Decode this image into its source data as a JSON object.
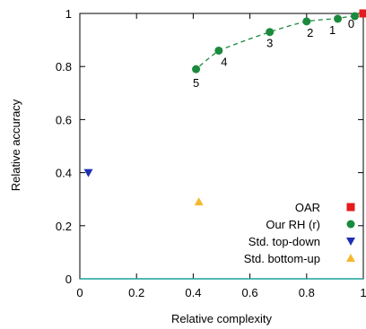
{
  "chart_data": {
    "type": "scatter",
    "xlabel": "Relative complexity",
    "ylabel": "Relative accuracy",
    "xlim": [
      0,
      1
    ],
    "ylim": [
      0,
      1
    ],
    "x_ticks": [
      0,
      0.2,
      0.4,
      0.6,
      0.8,
      1
    ],
    "y_ticks": [
      0,
      0.2,
      0.4,
      0.6,
      0.8,
      1
    ],
    "x_tick_labels": [
      "0",
      "0.2",
      "0.4",
      "0.6",
      "0.8",
      "1"
    ],
    "y_tick_labels": [
      "0",
      "0.2",
      "0.4",
      "0.6",
      "0.8",
      "1"
    ],
    "grid": false,
    "legend_position": "bottom-right",
    "series": [
      {
        "name": "OAR",
        "marker": "square",
        "color": "#e41a1c",
        "points": [
          {
            "x": 1.0,
            "y": 1.0
          }
        ]
      },
      {
        "name": "Our RH (r)",
        "marker": "circle",
        "color": "#1a8a3c",
        "connected": "dashed",
        "points": [
          {
            "x": 0.97,
            "y": 0.99,
            "label": "0"
          },
          {
            "x": 0.91,
            "y": 0.98,
            "label": "1"
          },
          {
            "x": 0.8,
            "y": 0.97,
            "label": "2"
          },
          {
            "x": 0.67,
            "y": 0.93,
            "label": "3"
          },
          {
            "x": 0.49,
            "y": 0.86,
            "label": "4"
          },
          {
            "x": 0.41,
            "y": 0.79,
            "label": "5"
          }
        ]
      },
      {
        "name": "Std. top-down",
        "marker": "triangle-down",
        "color": "#1f2fb4",
        "points": [
          {
            "x": 0.03,
            "y": 0.4
          }
        ]
      },
      {
        "name": "Std. bottom-up",
        "marker": "triangle-up",
        "color": "#f5b82e",
        "points": [
          {
            "x": 0.42,
            "y": 0.29
          }
        ]
      }
    ],
    "baseline": {
      "y": 0,
      "color": "#1aa09c"
    }
  }
}
